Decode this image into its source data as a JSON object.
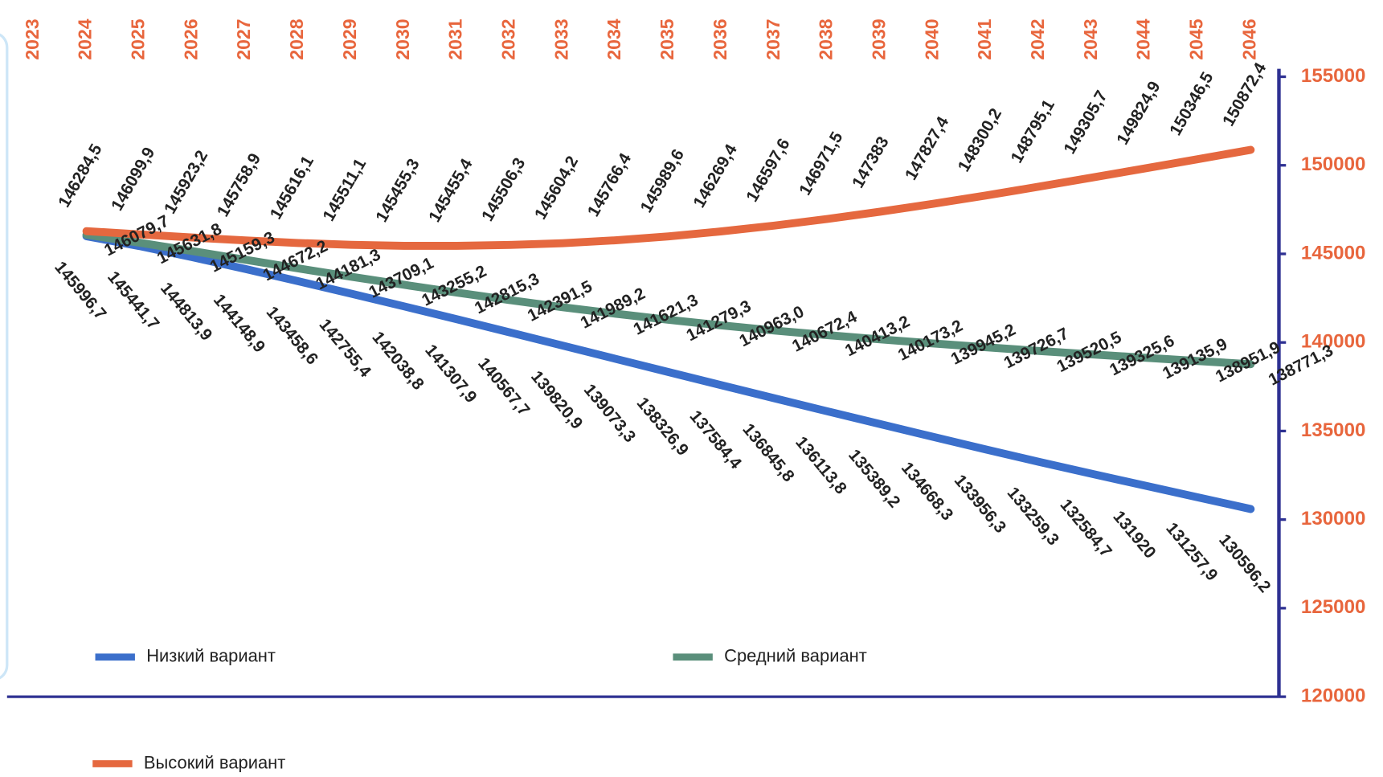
{
  "chart_data": {
    "type": "line",
    "categories": [
      "2023",
      "2024",
      "2025",
      "2026",
      "2027",
      "2028",
      "2029",
      "2030",
      "2031",
      "2032",
      "2033",
      "2034",
      "2035",
      "2036",
      "2037",
      "2038",
      "2039",
      "2040",
      "2041",
      "2042",
      "2043",
      "2044",
      "2045",
      "2046"
    ],
    "series": [
      {
        "name": "Низкий вариант",
        "color": "#3b6fcb",
        "values": [
          null,
          145996.7,
          145441.7,
          144813.9,
          144148.9,
          143458.6,
          142755.4,
          142038.8,
          141307.9,
          140567.7,
          139820.9,
          139073.3,
          138326.9,
          137584.4,
          136845.8,
          136113.8,
          135389.2,
          134668.3,
          133956.3,
          133259.3,
          132584.7,
          131920,
          131257.9,
          130596.2
        ],
        "value_labels": [
          null,
          "145996,7",
          "145441,7",
          "144813,9",
          "144148,9",
          "143458,6",
          "142755,4",
          "142038,8",
          "141307,9",
          "140567,7",
          "139820,9",
          "139073,3",
          "138326,9",
          "137584,4",
          "136845,8",
          "136113,8",
          "135389,2",
          "134668,3",
          "133956,3",
          "133259,3",
          "132584,7",
          "131920",
          "131257,9",
          "130596,2"
        ]
      },
      {
        "name": "Средний вариант",
        "color": "#5a8f7b",
        "values": [
          null,
          146079.7,
          145631.8,
          145159.3,
          144672.2,
          144181.3,
          143709.1,
          143255.2,
          142815.3,
          142391.5,
          141989.2,
          141621.3,
          141279.3,
          140963.0,
          140672.4,
          140413.2,
          140173.2,
          139945.2,
          139726.7,
          139520.5,
          139325.6,
          139135.9,
          138951.9,
          138771.3
        ],
        "value_labels": [
          null,
          "146079,7",
          "145631,8",
          "145159,3",
          "144672,2",
          "144181,3",
          "143709,1",
          "143255,2",
          "142815,3",
          "142391,5",
          "141989,2",
          "141621,3",
          "141279,3",
          "140963,0",
          "140672,4",
          "140413,2",
          "140173,2",
          "139945,2",
          "139726,7",
          "139520,5",
          "139325,6",
          "139135,9",
          "138951,9",
          "138771,3"
        ]
      },
      {
        "name": "Высокий вариант",
        "color": "#e5683f",
        "values": [
          null,
          146284.5,
          146099.9,
          145923.2,
          145758.9,
          145616.1,
          145511.1,
          145455.3,
          145455.4,
          145506.3,
          145604.2,
          145766.4,
          145989.6,
          146269.4,
          146597.6,
          146971.5,
          147383,
          147827.4,
          148300.2,
          148795.1,
          149305.7,
          149824.9,
          150346.5,
          150872.4
        ],
        "value_labels": [
          null,
          "146284,5",
          "146099,9",
          "145923,2",
          "145758,9",
          "145616,1",
          "145511,1",
          "145455,3",
          "145455,4",
          "145506,3",
          "145604,2",
          "145766,4",
          "145989,6",
          "146269,4",
          "146597,6",
          "146971,5",
          "147383",
          "147827,4",
          "148300,2",
          "148795,1",
          "149305,7",
          "149824,9",
          "150346,5",
          "150872,4"
        ]
      }
    ],
    "ylim": [
      120000,
      155000
    ],
    "yticks": [
      120000,
      125000,
      130000,
      135000,
      140000,
      145000,
      150000,
      155000
    ],
    "y_axis_side": "right",
    "legend": "bottom-left",
    "axis_color": "#2e3192",
    "tick_label_color": "#e8663d"
  }
}
